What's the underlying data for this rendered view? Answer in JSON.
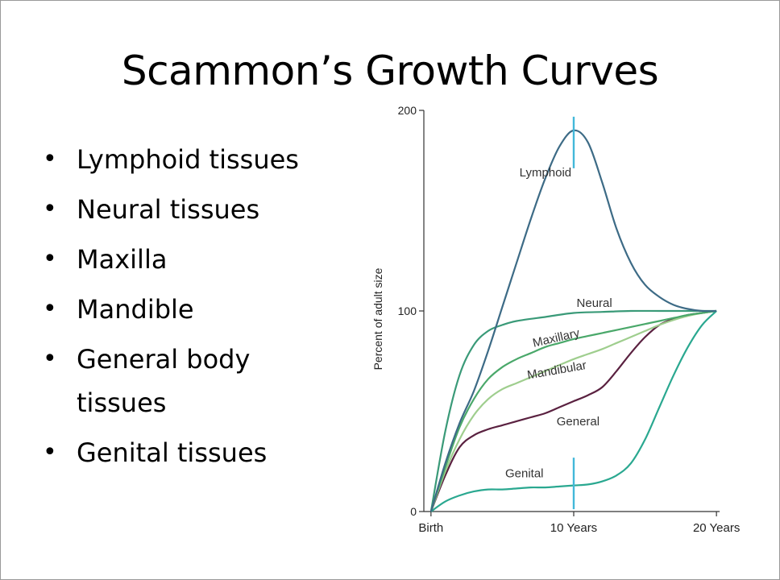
{
  "slide": {
    "title": "Scammon’s Growth Curves",
    "bullets": [
      "Lymphoid tissues",
      "Neural tissues",
      "Maxilla",
      "Mandible",
      "General body tissues",
      "Genital tissues"
    ]
  },
  "chart_data": {
    "type": "line",
    "title": "",
    "xlabel": "",
    "ylabel": "Percent of adult size",
    "x_ticks": [
      {
        "x": 0,
        "label": "Birth"
      },
      {
        "x": 10,
        "label": "10 Years"
      },
      {
        "x": 20,
        "label": "20 Years"
      }
    ],
    "y_ticks": [
      0,
      100,
      200
    ],
    "xlim": [
      -0.5,
      20.5
    ],
    "ylim": [
      0,
      200
    ],
    "grid": false,
    "legend": "none",
    "markers": [
      {
        "x": 10,
        "y": 184,
        "color": "#42b8d9"
      },
      {
        "x": 10,
        "y": 14,
        "color": "#42b8d9"
      }
    ],
    "series": [
      {
        "name": "Lymphoid",
        "color": "#3d6b86",
        "label_at": {
          "x": 6.2,
          "y": 167
        },
        "x": [
          0,
          1,
          2,
          3,
          4,
          5,
          6,
          7,
          8,
          9,
          10,
          11,
          12,
          13,
          14,
          15,
          16,
          17,
          18,
          19,
          20
        ],
        "y": [
          0,
          24,
          44,
          60,
          80,
          102,
          124,
          146,
          166,
          182,
          190,
          184,
          164,
          141,
          124,
          113,
          107,
          103,
          101,
          100,
          100
        ]
      },
      {
        "name": "Neural",
        "color": "#3a9a78",
        "label_at": {
          "x": 10.2,
          "y": 102
        },
        "x": [
          0,
          1,
          2,
          3,
          4,
          5,
          6,
          8,
          10,
          12,
          14,
          16,
          18,
          20
        ],
        "y": [
          0,
          40,
          68,
          83,
          90,
          93,
          95,
          97,
          99,
          99.5,
          100,
          100,
          100,
          100
        ]
      },
      {
        "name": "Maxillary",
        "color": "#4aa86a",
        "label_at": {
          "x": 7.2,
          "y": 82
        },
        "x": [
          0,
          1,
          2,
          3,
          4,
          5,
          6,
          7,
          8,
          9,
          10,
          11,
          12,
          13,
          14,
          15,
          16,
          17,
          18,
          19,
          20
        ],
        "y": [
          0,
          22,
          42,
          56,
          66,
          72,
          76,
          79,
          82,
          84,
          86,
          87.5,
          89,
          90.5,
          92,
          93.5,
          95,
          96.5,
          98,
          99,
          100
        ]
      },
      {
        "name": "Mandibular",
        "color": "#9fce8e",
        "label_at": {
          "x": 6.8,
          "y": 66
        },
        "x": [
          0,
          1,
          2,
          3,
          4,
          5,
          6,
          7,
          8,
          9,
          10,
          11,
          12,
          13,
          14,
          15,
          16,
          17,
          18,
          19,
          20
        ],
        "y": [
          0,
          20,
          36,
          48,
          56,
          61,
          64,
          67,
          70,
          73,
          76,
          78.5,
          81,
          84,
          87,
          90,
          93,
          95.5,
          97.5,
          99,
          100
        ]
      },
      {
        "name": "General",
        "color": "#5a2140",
        "label_at": {
          "x": 8.8,
          "y": 43
        },
        "x": [
          0,
          1,
          2,
          3,
          4,
          5,
          6,
          7,
          8,
          9,
          10,
          11,
          12,
          13,
          14,
          15,
          16,
          17,
          18,
          19,
          20
        ],
        "y": [
          0,
          18,
          32,
          38,
          41,
          43,
          45,
          47,
          49,
          52,
          55,
          58,
          62,
          70,
          79,
          87,
          93,
          96,
          98,
          99,
          100
        ]
      },
      {
        "name": "Genital",
        "color": "#2aa890",
        "label_at": {
          "x": 5.2,
          "y": 17
        },
        "x": [
          0,
          1,
          2,
          3,
          4,
          5,
          6,
          7,
          8,
          9,
          10,
          11,
          12,
          13,
          14,
          15,
          16,
          17,
          18,
          19,
          20
        ],
        "y": [
          0,
          5,
          8,
          10,
          11,
          11,
          11.5,
          12,
          12,
          12.5,
          13,
          13.5,
          15,
          18,
          24,
          36,
          52,
          68,
          82,
          93,
          100
        ]
      }
    ]
  }
}
